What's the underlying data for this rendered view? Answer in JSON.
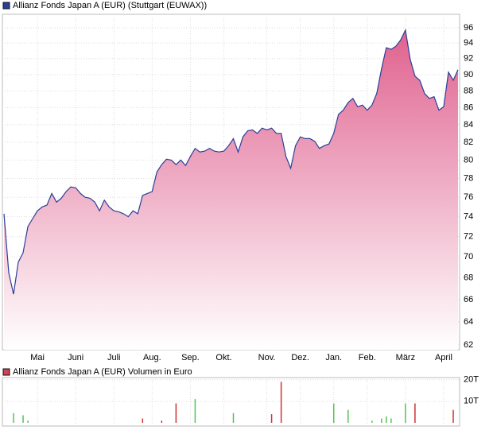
{
  "chart_data": [
    {
      "type": "area",
      "title": "Allianz Fonds Japan A (EUR) (Stuttgart (EUWAX))",
      "color": "#2b3f99",
      "fill_color": "#e0628f",
      "log_scale": true,
      "grid": true,
      "ylim": [
        61.6,
        97.8
      ],
      "yticks": [
        62,
        64,
        66,
        68,
        70,
        72,
        74,
        76,
        78,
        80,
        82,
        84,
        86,
        88,
        90,
        92,
        94,
        96
      ],
      "categories": [
        null,
        null,
        null,
        null,
        null,
        null,
        null,
        "Mai",
        null,
        null,
        null,
        null,
        null,
        null,
        null,
        "Juni",
        null,
        null,
        null,
        null,
        null,
        null,
        null,
        "Juli",
        null,
        null,
        null,
        null,
        null,
        null,
        null,
        "Aug.",
        null,
        null,
        null,
        null,
        null,
        null,
        null,
        "Sep.",
        null,
        null,
        null,
        null,
        null,
        null,
        "Okt.",
        null,
        null,
        null,
        null,
        null,
        null,
        null,
        null,
        "Nov.",
        null,
        null,
        null,
        null,
        null,
        null,
        "Dez.",
        null,
        null,
        null,
        null,
        null,
        null,
        "Jan.",
        null,
        null,
        null,
        null,
        null,
        null,
        "Feb.",
        null,
        null,
        null,
        null,
        null,
        null,
        null,
        "März",
        null,
        null,
        null,
        null,
        null,
        null,
        null,
        "April",
        null,
        null,
        null
      ],
      "values": [
        74.3,
        68.5,
        66.5,
        69.5,
        70.4,
        73,
        73.8,
        74.6,
        75,
        75.2,
        76.4,
        75.5,
        75.9,
        76.6,
        77.1,
        77,
        76.4,
        76,
        75.9,
        75.5,
        74.6,
        75.7,
        75,
        74.6,
        74.5,
        74.3,
        74,
        74.6,
        74.3,
        76.2,
        76.4,
        76.6,
        78.7,
        79.5,
        80.1,
        80,
        79.5,
        80,
        79.4,
        80.4,
        81.3,
        80.9,
        81,
        81.3,
        81,
        80.9,
        81,
        81.6,
        82.4,
        80.9,
        82.6,
        83.3,
        83.4,
        83,
        83.6,
        83.4,
        83.6,
        83,
        83,
        80.4,
        79.1,
        81.6,
        82.6,
        82.4,
        82.4,
        82.1,
        81.3,
        81.6,
        81.8,
        83,
        85.2,
        85.7,
        86.6,
        87.1,
        86.1,
        86.3,
        85.7,
        86.3,
        87.7,
        90.7,
        93.4,
        93.2,
        93.6,
        94.4,
        95.7,
        91.9,
        89.8,
        89.3,
        87.7,
        87.1,
        87.3,
        85.7,
        86.1,
        90.3,
        89.3,
        90.6
      ]
    },
    {
      "type": "bar",
      "title": "Allianz Fonds Japan A (EUR) Volumen in Euro",
      "color": "#cc4455",
      "ylim": [
        -1.5,
        21
      ],
      "yticks": [
        {
          "value": 10,
          "label": "10T"
        },
        {
          "value": 20,
          "label": "20T"
        }
      ],
      "values": [
        null,
        null,
        4.5,
        null,
        3.5,
        1,
        null,
        null,
        null,
        null,
        null,
        null,
        null,
        null,
        null,
        null,
        null,
        null,
        null,
        null,
        null,
        null,
        null,
        null,
        null,
        null,
        null,
        null,
        null,
        2,
        null,
        null,
        null,
        1,
        null,
        null,
        9,
        null,
        null,
        null,
        11,
        null,
        null,
        null,
        null,
        null,
        null,
        null,
        4.5,
        null,
        null,
        null,
        null,
        null,
        null,
        null,
        4,
        null,
        19,
        null,
        null,
        null,
        null,
        null,
        null,
        null,
        null,
        null,
        null,
        9,
        null,
        null,
        6,
        null,
        null,
        null,
        null,
        1,
        null,
        2,
        3,
        2,
        null,
        null,
        9,
        null,
        9,
        null,
        null,
        null,
        null,
        null,
        null,
        null,
        6,
        null
      ],
      "colors": [
        null,
        null,
        "#55c255",
        null,
        "#55c255",
        "#55c255",
        null,
        null,
        null,
        null,
        null,
        null,
        null,
        null,
        null,
        null,
        null,
        null,
        null,
        null,
        null,
        null,
        null,
        null,
        null,
        null,
        null,
        null,
        null,
        "#cc3333",
        null,
        null,
        null,
        "#cc3333",
        null,
        null,
        "#cc3333",
        null,
        null,
        null,
        "#55c255",
        null,
        null,
        null,
        null,
        null,
        null,
        null,
        "#55c255",
        null,
        null,
        null,
        null,
        null,
        null,
        null,
        "#cc3333",
        null,
        "#cc3333",
        null,
        null,
        null,
        null,
        null,
        null,
        null,
        null,
        null,
        null,
        "#55c255",
        null,
        null,
        "#55c255",
        null,
        null,
        null,
        null,
        "#55c255",
        null,
        "#55c255",
        "#55c255",
        "#55c255",
        null,
        null,
        "#55c255",
        null,
        "#cc3333",
        null,
        null,
        null,
        null,
        null,
        null,
        null,
        "#cc3333",
        null
      ]
    }
  ]
}
